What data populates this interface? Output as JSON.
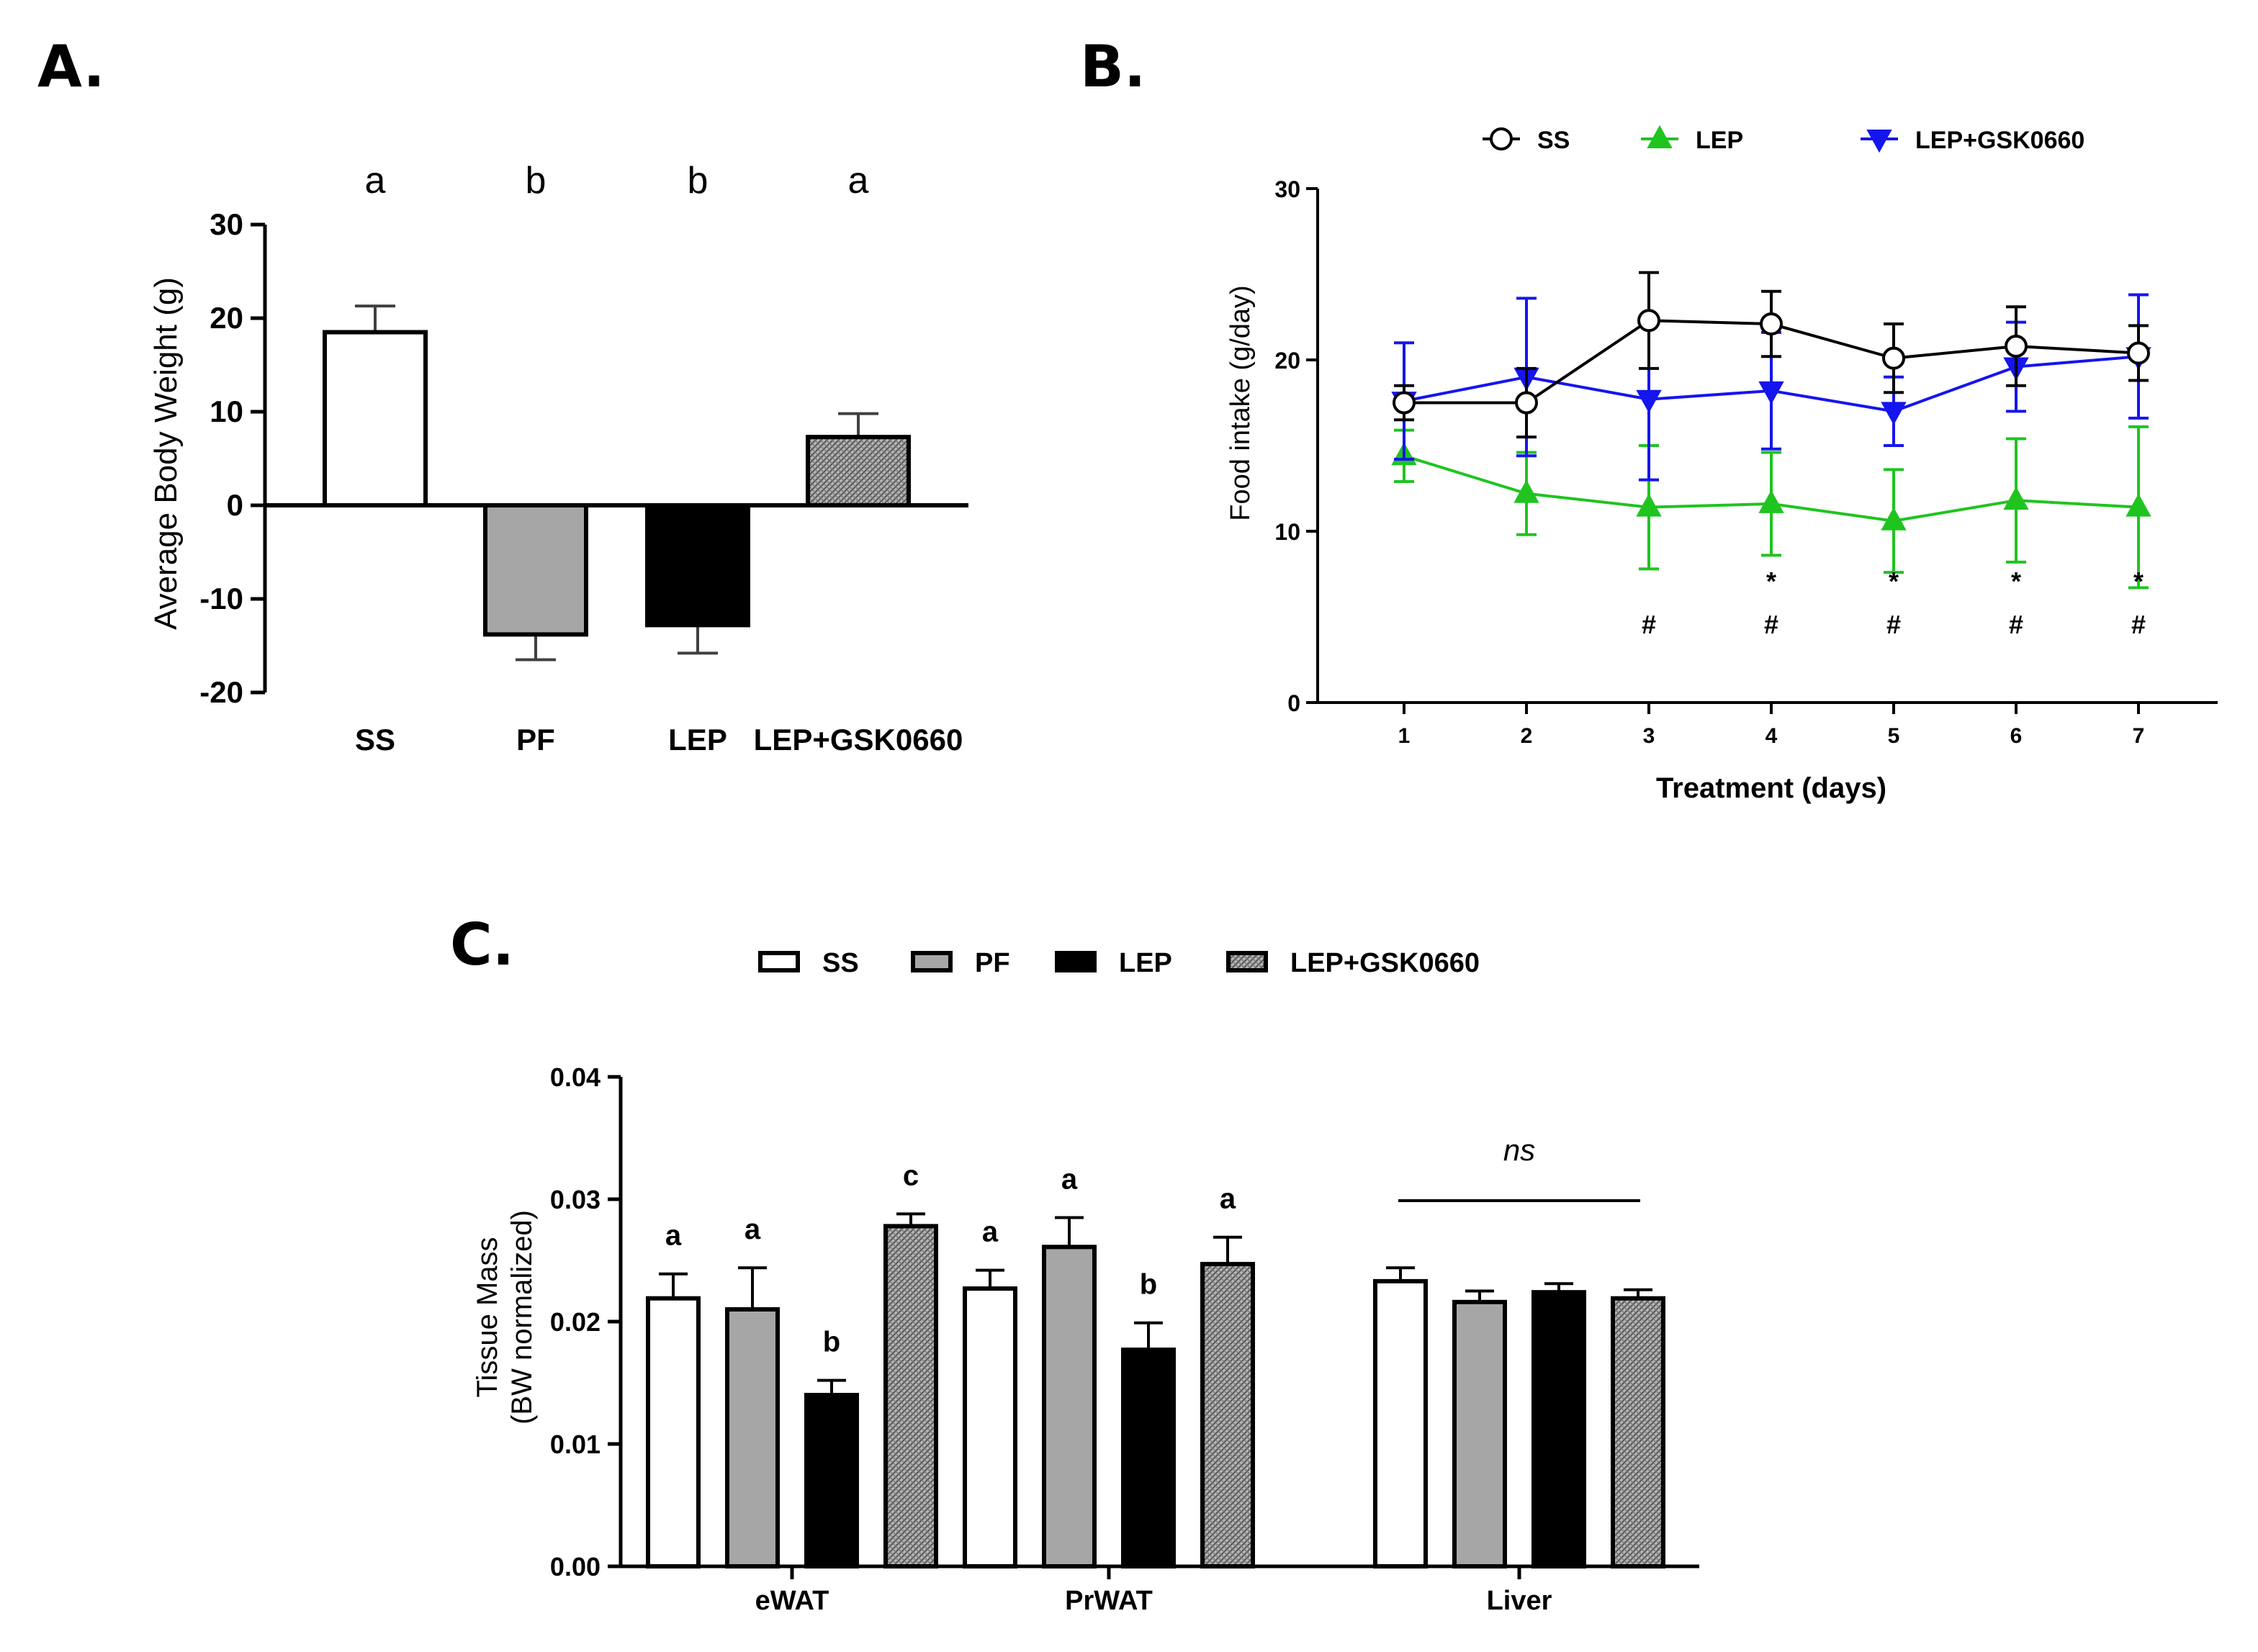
{
  "colors": {
    "SS": "#ffffff",
    "PF": "#a6a6a6",
    "LEP": "#000000",
    "LEP+GSK0660": "#8c8c8c",
    "line_SS": "#000000",
    "line_LEP": "#1fc41f",
    "line_LEPGSK": "#1515ee"
  },
  "chart_data": [
    {
      "panel": "A.",
      "type": "bar",
      "ylabel": "Average Body Weight (g)",
      "ylim": [
        -20,
        30
      ],
      "yticks": [
        "30",
        "20",
        "10",
        "0",
        "-10",
        "-20"
      ],
      "categories": [
        "SS",
        "PF",
        "LEP",
        "LEP+GSK0660"
      ],
      "values": [
        18.5,
        -13.8,
        -12.8,
        7.3
      ],
      "errors": [
        2.8,
        2.7,
        3.0,
        2.5
      ],
      "significance": [
        "a",
        "b",
        "b",
        "a"
      ]
    },
    {
      "panel": "B.",
      "type": "line",
      "xlabel": "Treatment (days)",
      "ylabel": "Food intake (g/day)",
      "ylim": [
        0,
        30
      ],
      "yticks": [
        "30",
        "20",
        "10",
        "0"
      ],
      "x": [
        "1",
        "2",
        "3",
        "4",
        "5",
        "6",
        "7"
      ],
      "series": [
        {
          "name": "SS",
          "values": [
            17.5,
            17.5,
            22.3,
            22.1,
            20.1,
            20.8,
            20.4
          ],
          "errors": [
            1.0,
            2.0,
            2.8,
            1.9,
            2.0,
            2.3,
            1.6
          ]
        },
        {
          "name": "LEP",
          "values": [
            14.4,
            12.2,
            11.4,
            11.6,
            10.6,
            11.8,
            11.4
          ],
          "errors": [
            1.5,
            2.4,
            3.6,
            3.0,
            3.0,
            3.6,
            4.7
          ]
        },
        {
          "name": "LEP+GSK0660",
          "values": [
            17.6,
            19.0,
            17.7,
            18.2,
            17.0,
            19.6,
            20.2
          ],
          "errors": [
            3.4,
            4.6,
            4.7,
            3.4,
            2.0,
            2.6,
            3.6
          ]
        }
      ],
      "annotations": [
        {
          "day": "3",
          "marks": [
            "#"
          ]
        },
        {
          "day": "4",
          "marks": [
            "*",
            "#"
          ]
        },
        {
          "day": "5",
          "marks": [
            "*",
            "#"
          ]
        },
        {
          "day": "6",
          "marks": [
            "*",
            "#"
          ]
        },
        {
          "day": "7",
          "marks": [
            "*",
            "#"
          ]
        }
      ],
      "legend": [
        "SS",
        "LEP",
        "LEP+GSK0660"
      ]
    },
    {
      "panel": "C.",
      "type": "bar",
      "ylabel": [
        "Tissue Mass",
        "(BW normalized)"
      ],
      "ylim": [
        0,
        0.04
      ],
      "yticks": [
        "0.04",
        "0.03",
        "0.02",
        "0.01",
        "0.00"
      ],
      "categories": [
        "eWAT",
        "PrWAT",
        "Liver"
      ],
      "series": [
        {
          "name": "SS",
          "values": [
            0.0219,
            0.0227,
            0.0233
          ],
          "errors": [
            0.002,
            0.0015,
            0.0011
          ]
        },
        {
          "name": "PF",
          "values": [
            0.021,
            0.0261,
            0.0216
          ],
          "errors": [
            0.0034,
            0.0024,
            0.0009
          ]
        },
        {
          "name": "LEP",
          "values": [
            0.014,
            0.0177,
            0.0224
          ],
          "errors": [
            0.0012,
            0.0022,
            0.0007
          ]
        },
        {
          "name": "LEP+GSK0660",
          "values": [
            0.0278,
            0.0247,
            0.0219
          ],
          "errors": [
            0.001,
            0.0022,
            0.0007
          ]
        }
      ],
      "significance": [
        [
          "a",
          "a",
          "b",
          "c"
        ],
        [
          "a",
          "a",
          "b",
          "a"
        ]
      ],
      "ns_label": "ns",
      "legend": [
        "SS",
        "PF",
        "LEP",
        "LEP+GSK0660"
      ]
    }
  ]
}
